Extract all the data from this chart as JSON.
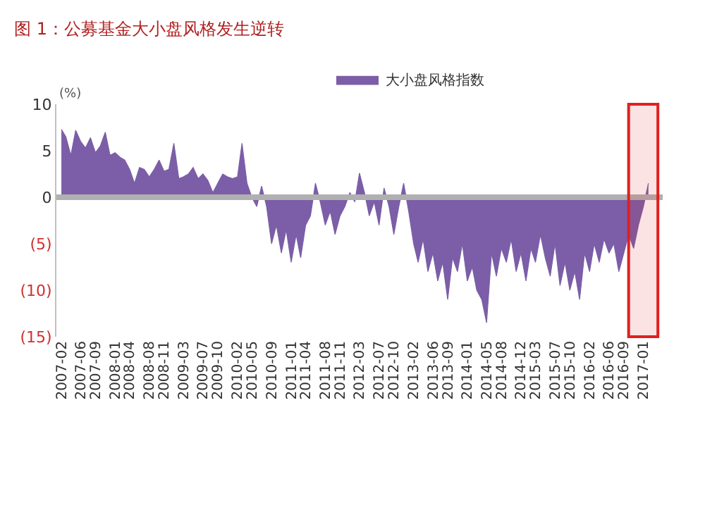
{
  "chart_data": {
    "type": "area",
    "title": "图 1：公募基金大小盘风格发生逆转",
    "ylabel": "(%)",
    "x": [
      "2007-02",
      "2007-03",
      "2007-04",
      "2007-05",
      "2007-06",
      "2007-07",
      "2007-08",
      "2007-09",
      "2007-10",
      "2007-11",
      "2007-12",
      "2008-01",
      "2008-02",
      "2008-03",
      "2008-04",
      "2008-05",
      "2008-06",
      "2008-07",
      "2008-08",
      "2008-09",
      "2008-10",
      "2008-11",
      "2008-12",
      "2009-01",
      "2009-02",
      "2009-03",
      "2009-04",
      "2009-05",
      "2009-06",
      "2009-07",
      "2009-08",
      "2009-09",
      "2009-10",
      "2009-11",
      "2009-12",
      "2010-01",
      "2010-02",
      "2010-03",
      "2010-04",
      "2010-05",
      "2010-06",
      "2010-07",
      "2010-08",
      "2010-09",
      "2010-10",
      "2010-11",
      "2010-12",
      "2011-01",
      "2011-02",
      "2011-03",
      "2011-04",
      "2011-05",
      "2011-06",
      "2011-07",
      "2011-08",
      "2011-09",
      "2011-10",
      "2011-11",
      "2011-12",
      "2012-01",
      "2012-02",
      "2012-03",
      "2012-04",
      "2012-05",
      "2012-06",
      "2012-07",
      "2012-08",
      "2012-09",
      "2012-10",
      "2012-11",
      "2012-12",
      "2013-01",
      "2013-02",
      "2013-03",
      "2013-04",
      "2013-05",
      "2013-06",
      "2013-07",
      "2013-08",
      "2013-09",
      "2013-10",
      "2013-11",
      "2013-12",
      "2014-01",
      "2014-02",
      "2014-03",
      "2014-04",
      "2014-05",
      "2014-06",
      "2014-07",
      "2014-08",
      "2014-09",
      "2014-10",
      "2014-11",
      "2014-12",
      "2015-01",
      "2015-02",
      "2015-03",
      "2015-04",
      "2015-05",
      "2015-06",
      "2015-07",
      "2015-08",
      "2015-09",
      "2015-10",
      "2015-11",
      "2015-12",
      "2016-01",
      "2016-02",
      "2016-03",
      "2016-04",
      "2016-05",
      "2016-06",
      "2016-07",
      "2016-08",
      "2016-09",
      "2016-10",
      "2016-11",
      "2016-12",
      "2017-01",
      "2017-02"
    ],
    "series": [
      {
        "name": "大小盘风格指数",
        "color": "#7b5ea7",
        "values": [
          7.3,
          6.5,
          4.5,
          7.2,
          6.0,
          5.3,
          6.4,
          4.8,
          5.5,
          7.0,
          4.5,
          4.8,
          4.3,
          4.0,
          3.0,
          1.5,
          3.2,
          3.0,
          2.2,
          3.0,
          4.0,
          2.8,
          3.0,
          5.8,
          2.0,
          2.2,
          2.5,
          3.2,
          2.0,
          2.5,
          1.8,
          0.5,
          1.5,
          2.5,
          2.2,
          2.0,
          2.2,
          5.8,
          1.5,
          0,
          -1.0,
          1.2,
          -1.0,
          -5.0,
          -3.0,
          -6.0,
          -3.5,
          -7.0,
          -4.0,
          -6.5,
          -3.0,
          -2.0,
          1.5,
          -0.5,
          -3.0,
          -1.5,
          -4.0,
          -2.0,
          -1.0,
          0.5,
          -0.5,
          2.6,
          0.5,
          -2.0,
          -0.5,
          -3.0,
          1.0,
          -1.0,
          -4.0,
          -1.0,
          1.5,
          -1.5,
          -5.0,
          -7.0,
          -4.5,
          -8.0,
          -6.0,
          -9.0,
          -7.0,
          -11.0,
          -6.5,
          -8.0,
          -5.0,
          -9.0,
          -7.5,
          -10.0,
          -11.0,
          -13.5,
          -6.0,
          -8.5,
          -5.5,
          -7.0,
          -4.5,
          -8.0,
          -6.0,
          -9.0,
          -5.5,
          -7.0,
          -4.0,
          -6.5,
          -8.5,
          -5.0,
          -9.5,
          -7.0,
          -10.0,
          -8.0,
          -11.0,
          -6.0,
          -8.0,
          -5.0,
          -7.0,
          -4.5,
          -6.0,
          -5.0,
          -8.0,
          -6.0,
          -4.0,
          -5.5,
          -3.0,
          -1.0,
          1.5
        ]
      }
    ],
    "xlim": [
      "2007-01",
      "2017-05"
    ],
    "xticks": [
      "2007-02",
      "2007-06",
      "2007-09",
      "2008-01",
      "2008-04",
      "2008-08",
      "2008-11",
      "2009-03",
      "2009-07",
      "2009-10",
      "2010-02",
      "2010-05",
      "2010-09",
      "2011-01",
      "2011-04",
      "2011-08",
      "2011-11",
      "2012-03",
      "2012-07",
      "2012-10",
      "2013-02",
      "2013-06",
      "2013-09",
      "2014-01",
      "2014-05",
      "2014-08",
      "2014-12",
      "2015-03",
      "2015-07",
      "2015-10",
      "2016-02",
      "2016-06",
      "2016-09",
      "2017-01"
    ],
    "ylim": [
      -15,
      10
    ],
    "yticks": [
      10,
      5,
      0,
      {
        "value": -5,
        "label": "(5)"
      },
      {
        "value": -10,
        "label": "(10)"
      },
      {
        "value": -15,
        "label": "(15)"
      }
    ],
    "ref_lines": [
      {
        "axis": "y",
        "value": 0,
        "color": "#b0b0b0"
      }
    ],
    "bands": [
      {
        "axis": "x",
        "from": "2016-10",
        "to": "2017-04",
        "color": "#e02020"
      }
    ],
    "legend": "top",
    "marker": "none"
  }
}
